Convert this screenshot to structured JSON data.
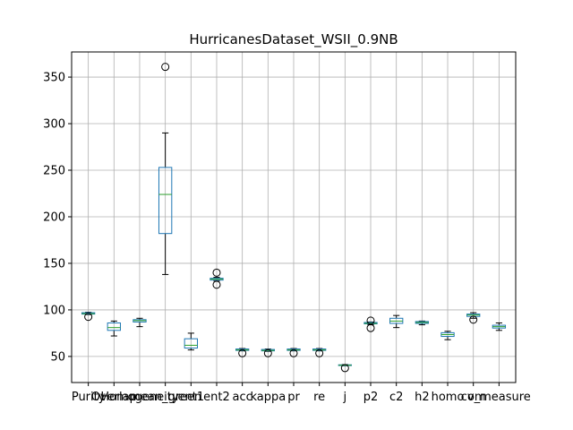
{
  "chart_data": {
    "type": "boxplot",
    "title": "HurricanesDataset_WSII_0.9NB",
    "xlabel": "",
    "ylabel": "",
    "ylim": [
      22,
      377
    ],
    "yticks": [
      50,
      100,
      150,
      200,
      250,
      300,
      350
    ],
    "grid": true,
    "colors": {
      "box": "#1f77b4",
      "median": "#2ca02c",
      "whisker": "#000000",
      "flier": "#000000",
      "grid": "#b0b0b0"
    },
    "series": [
      {
        "name": "Purity",
        "whislo": 95,
        "q1": 95.5,
        "med": 96,
        "q3": 97,
        "whishi": 97.5,
        "fliers": [
          92.5
        ]
      },
      {
        "name": "Overlap",
        "whislo": 72,
        "q1": 78,
        "med": 81,
        "q3": 86,
        "whishi": 88,
        "fliers": []
      },
      {
        "name": "Homogeneity",
        "whislo": 82,
        "q1": 87,
        "med": 88.5,
        "q3": 89.5,
        "whishi": 91,
        "fliers": []
      },
      {
        "name": "mean_green",
        "whislo": 138,
        "q1": 182,
        "med": 224,
        "q3": 253,
        "whishi": 290,
        "fliers": [
          361
        ]
      },
      {
        "name": "ent1",
        "whislo": 57,
        "q1": 59,
        "med": 62,
        "q3": 69,
        "whishi": 75,
        "fliers": []
      },
      {
        "name": "ent2",
        "whislo": 131,
        "q1": 132,
        "med": 133,
        "q3": 134,
        "whishi": 135,
        "fliers": [
          140,
          127
        ]
      },
      {
        "name": "acc",
        "whislo": 56,
        "q1": 56.5,
        "med": 57,
        "q3": 58,
        "whishi": 58.5,
        "fliers": [
          53.5
        ]
      },
      {
        "name": "kappa",
        "whislo": 55.5,
        "q1": 56,
        "med": 56.5,
        "q3": 57.5,
        "whishi": 58,
        "fliers": [
          53.5
        ]
      },
      {
        "name": "pr",
        "whislo": 56,
        "q1": 56.5,
        "med": 57,
        "q3": 58,
        "whishi": 58.5,
        "fliers": [
          53.5
        ]
      },
      {
        "name": "re",
        "whislo": 56,
        "q1": 56.5,
        "med": 57,
        "q3": 58,
        "whishi": 58.5,
        "fliers": [
          53.5
        ]
      },
      {
        "name": "j",
        "whislo": 40,
        "q1": 40.3,
        "med": 40.6,
        "q3": 41,
        "whishi": 41.3,
        "fliers": [
          37.5
        ]
      },
      {
        "name": "p2",
        "whislo": 84,
        "q1": 85,
        "med": 85.5,
        "q3": 86.5,
        "whishi": 87,
        "fliers": [
          88.5,
          80.5
        ]
      },
      {
        "name": "c2",
        "whislo": 81,
        "q1": 85.5,
        "med": 88,
        "q3": 91,
        "whishi": 94,
        "fliers": []
      },
      {
        "name": "h2",
        "whislo": 84,
        "q1": 85.5,
        "med": 86.5,
        "q3": 87.5,
        "whishi": 88,
        "fliers": []
      },
      {
        "name": "homo",
        "whislo": 68,
        "q1": 71.5,
        "med": 73.5,
        "q3": 75.5,
        "whishi": 77,
        "fliers": []
      },
      {
        "name": "com",
        "whislo": 91,
        "q1": 93,
        "med": 94.5,
        "q3": 95.5,
        "whishi": 97,
        "fliers": [
          89.5
        ]
      },
      {
        "name": "v_measure",
        "whislo": 78,
        "q1": 80.5,
        "med": 82,
        "q3": 83.5,
        "whishi": 86,
        "fliers": []
      }
    ]
  }
}
